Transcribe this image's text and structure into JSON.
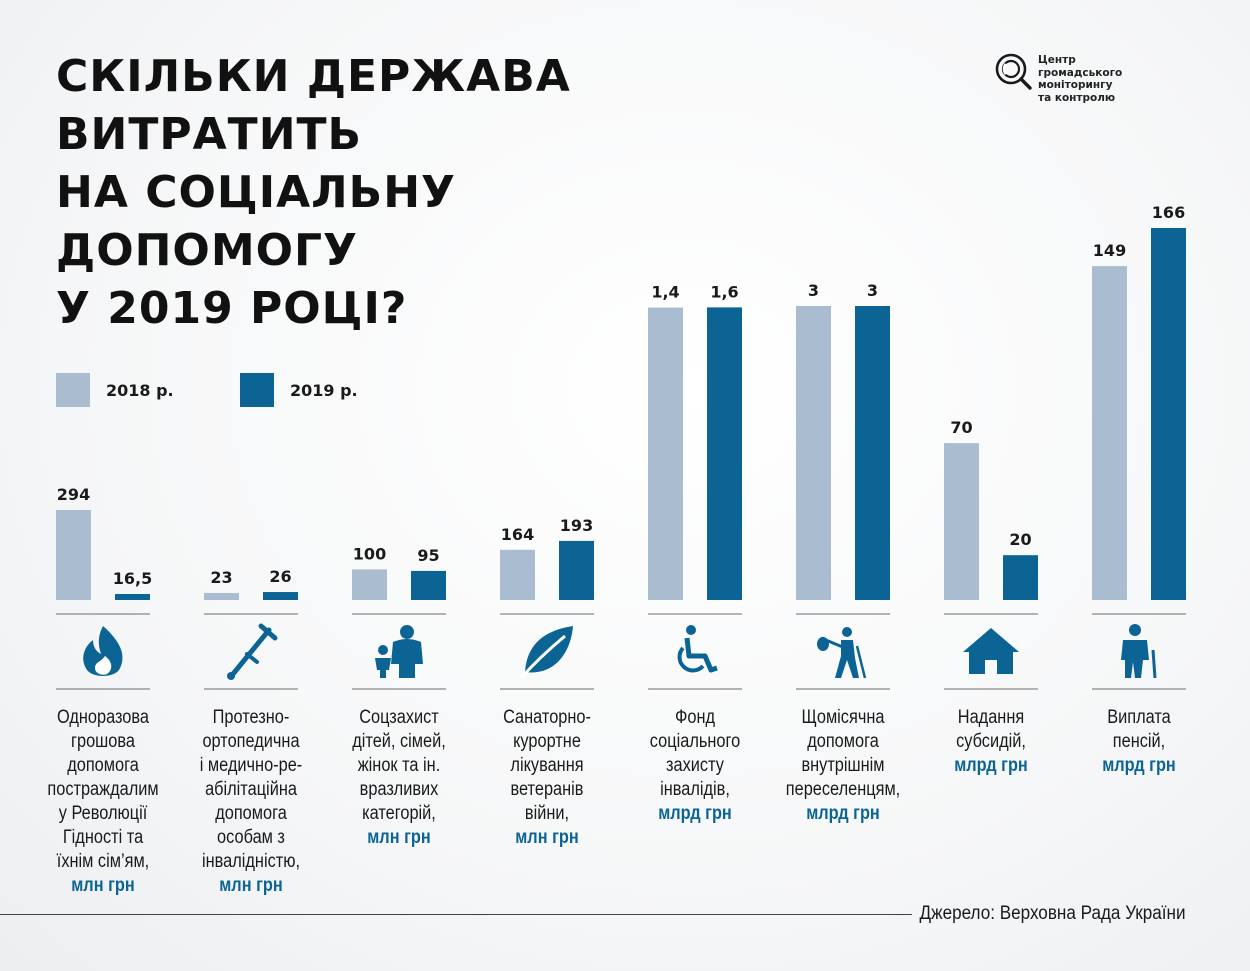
{
  "title": {
    "lines": [
      "Скільки держава",
      "витратить",
      "на соціальну",
      "допомогу",
      "у 2019 році?"
    ]
  },
  "logo": {
    "lines": [
      "Центр",
      "громадського моніторингу",
      "та контролю"
    ]
  },
  "legend": [
    {
      "label": "2018 р.",
      "color": "#a9bcd0"
    },
    {
      "label": "2019 р.",
      "color": "#0c6494"
    }
  ],
  "colors": {
    "y2018": "#a9bcd0",
    "y2019": "#0c6494",
    "unit": "#0c6494"
  },
  "chart_data": {
    "type": "bar",
    "subtitle": "",
    "series": [
      {
        "name": "2018 р.",
        "values": [
          "294",
          "23",
          "100",
          "164",
          "1,4",
          "3",
          "70",
          "149"
        ]
      },
      {
        "name": "2019 р.",
        "values": [
          "16,5",
          "26",
          "95",
          "193",
          "1,6",
          "3",
          "20",
          "166"
        ]
      }
    ],
    "categories": [
      {
        "icon": "fire-icon",
        "label_lines": [
          "Одноразова",
          "грошова",
          "допомога",
          "постраждалим",
          "у Революції",
          "Гідності та",
          "їхнім сім’ям,"
        ],
        "unit": "млн грн",
        "v2018": 294,
        "v2019": 16.5,
        "label2018": "294",
        "label2019": "16,5"
      },
      {
        "icon": "crutch-icon",
        "label_lines": [
          "Протезно-",
          "ортопедична",
          "і медично-ре-",
          "абілітаційна",
          "допомога",
          "особам з",
          "інвалідністю,"
        ],
        "unit": "млн грн",
        "v2018": 23,
        "v2019": 26,
        "label2018": "23",
        "label2019": "26"
      },
      {
        "icon": "family-icon",
        "label_lines": [
          "Соцзахист",
          "дітей, сімей,",
          "жінок та ін.",
          "вразливих",
          "категорій,"
        ],
        "unit": "млн грн",
        "v2018": 100,
        "v2019": 95,
        "label2018": "100",
        "label2019": "95"
      },
      {
        "icon": "leaf-icon",
        "label_lines": [
          "Санаторно-",
          "курортне",
          "лікування",
          "ветеранів",
          "війни,"
        ],
        "unit": "млн грн",
        "v2018": 164,
        "v2019": 193,
        "label2018": "164",
        "label2019": "193"
      },
      {
        "icon": "wheelchair-icon",
        "label_lines": [
          "Фонд",
          "соціального",
          "захисту",
          "інвалідів,"
        ],
        "unit": "млрд грн",
        "v2018": 1.4,
        "v2019": 1.6,
        "label2018": "1,4",
        "label2019": "1,6"
      },
      {
        "icon": "migrant-icon",
        "label_lines": [
          "Щомісячна",
          "допомога",
          "внутрішнім",
          "переселенцям,"
        ],
        "unit": "млрд грн",
        "v2018": 3,
        "v2019": 3,
        "label2018": "3",
        "label2019": "3"
      },
      {
        "icon": "house-icon",
        "label_lines": [
          "Надання",
          "субсидій,"
        ],
        "unit": "млрд грн",
        "v2018": 70,
        "v2019": 20,
        "label2018": "70",
        "label2019": "20"
      },
      {
        "icon": "elderly-icon",
        "label_lines": [
          "Виплата",
          "пенсій,"
        ],
        "unit": "млрд грн",
        "v2018": 149,
        "v2019": 166,
        "label2018": "149",
        "label2019": "166"
      }
    ]
  },
  "source": "Джерело: Верховна Рада України"
}
